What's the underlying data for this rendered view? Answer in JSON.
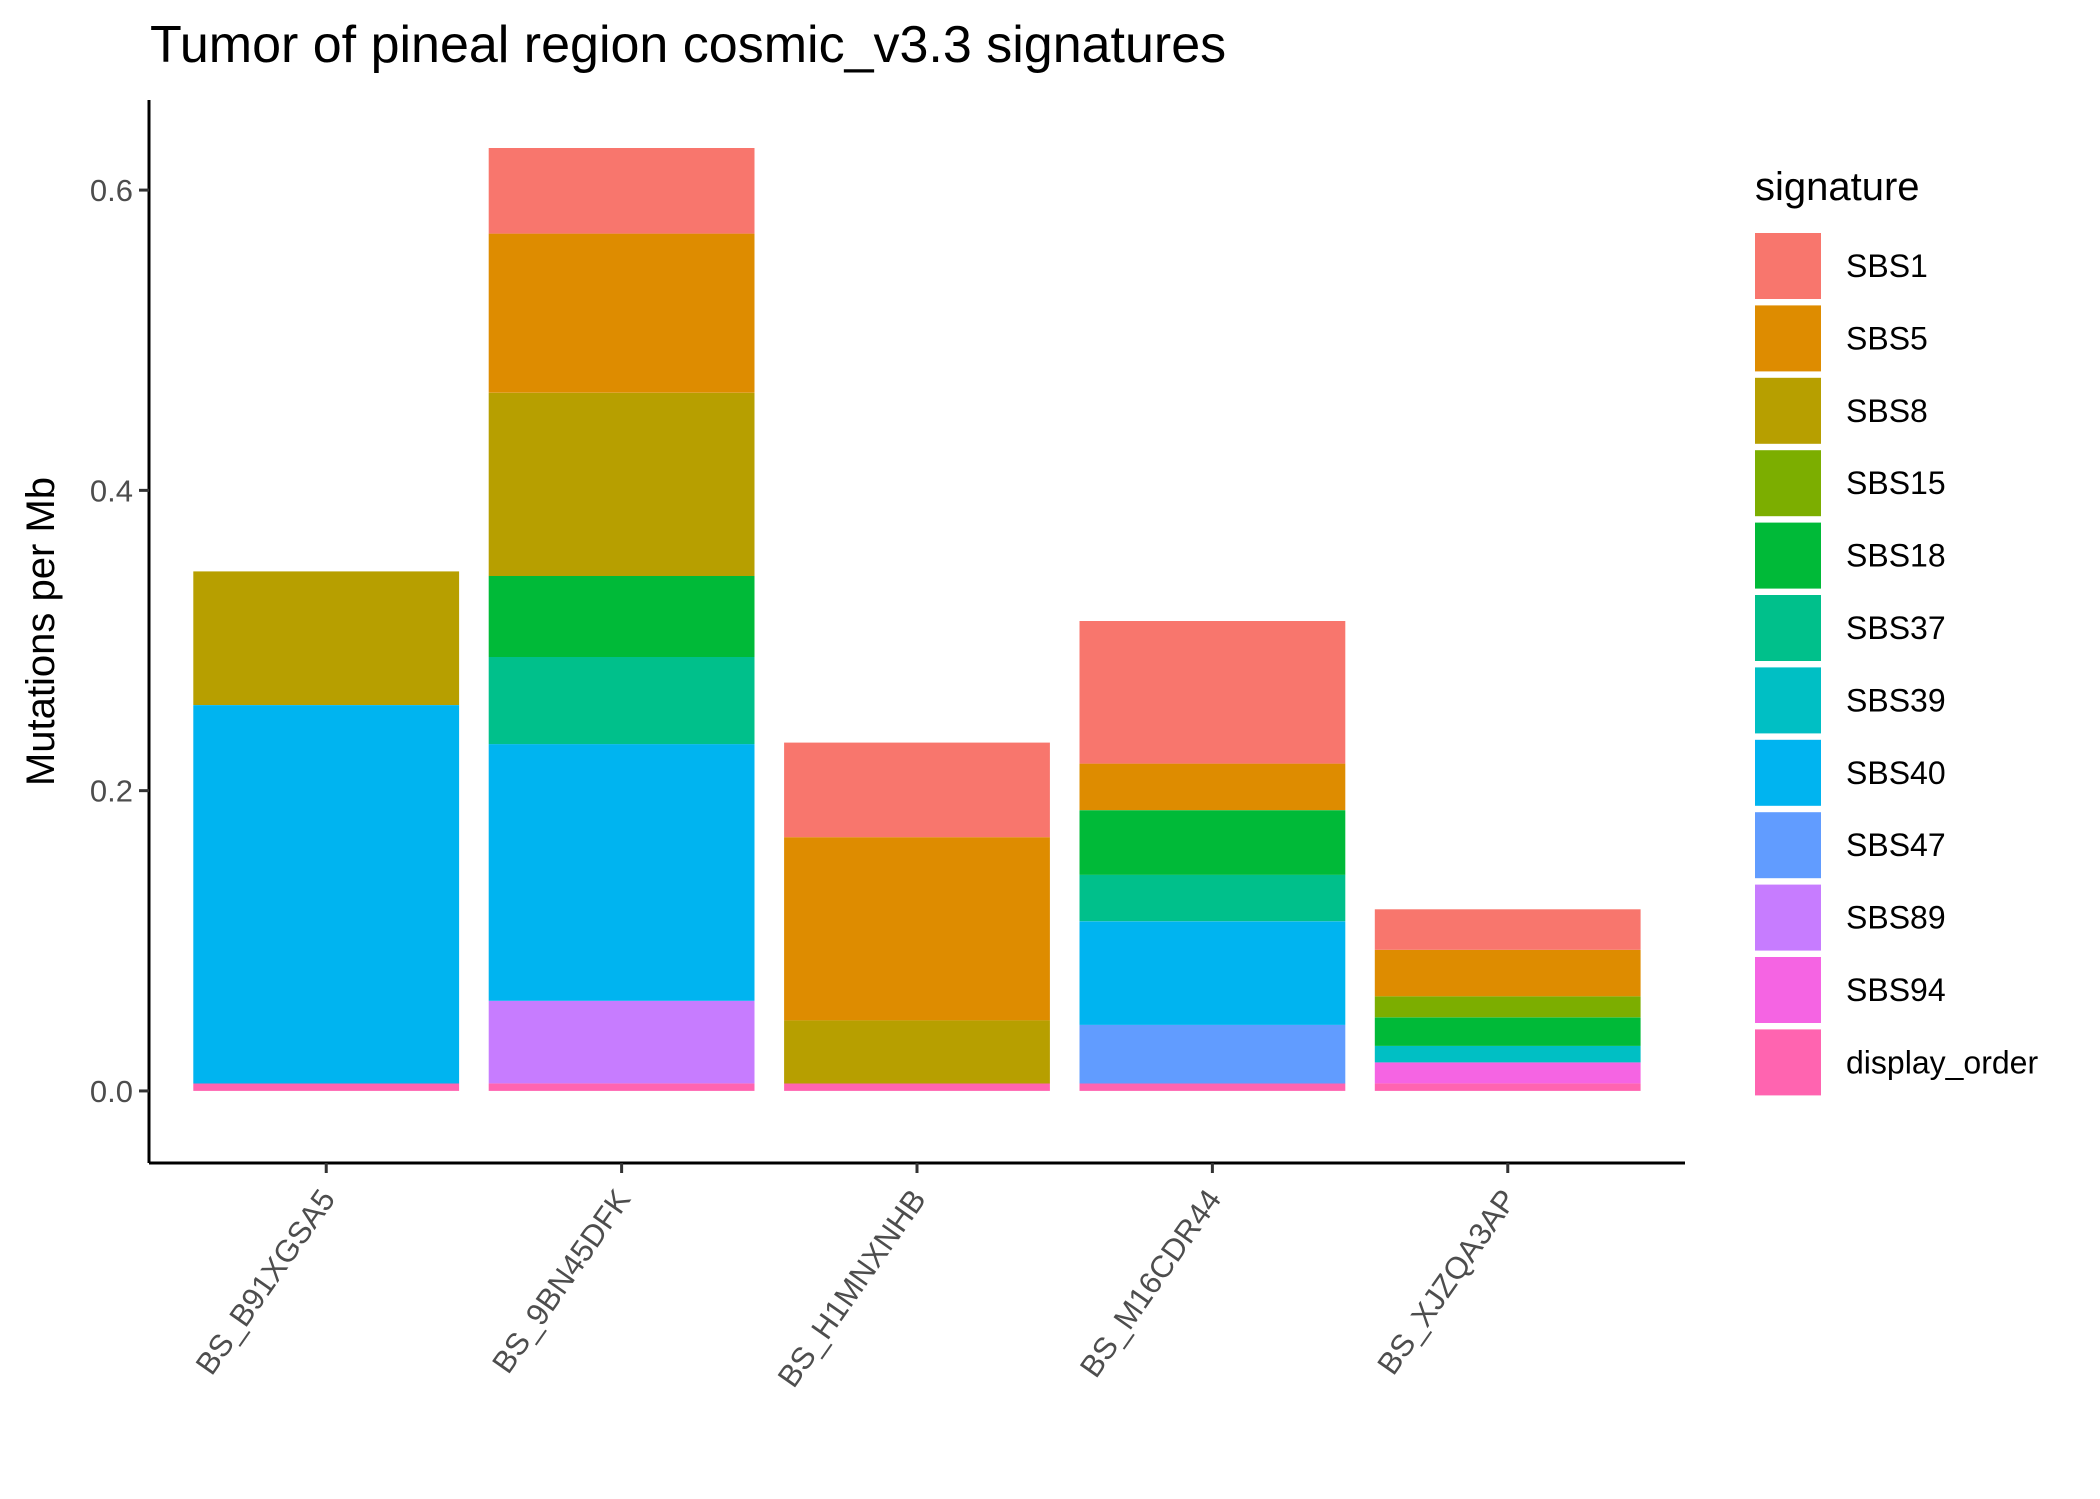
{
  "chart_data": {
    "type": "bar",
    "stacked": true,
    "title": "Tumor of pineal region cosmic_v3.3 signatures",
    "xlabel": "",
    "ylabel": "Mutations per Mb",
    "ylim": [
      -0.048,
      0.66
    ],
    "yticks": [
      0.0,
      0.2,
      0.4,
      0.6
    ],
    "ytick_labels": [
      "0.0",
      "0.2",
      "0.4",
      "0.6"
    ],
    "grid": false,
    "legend": {
      "title": "signature",
      "position": "right"
    },
    "categories": [
      "BS_B91XGSA5",
      "BS_9BN45DFK",
      "BS_H1MNXNHB",
      "BS_M16CDR44",
      "BS_XJZQA3AP"
    ],
    "series": [
      {
        "name": "SBS1",
        "color": "#F8766D",
        "values": [
          0,
          0.057,
          0.063,
          0.095,
          0.027
        ]
      },
      {
        "name": "SBS5",
        "color": "#DE8C00",
        "values": [
          0,
          0.106,
          0.122,
          0.031,
          0.031
        ]
      },
      {
        "name": "SBS8",
        "color": "#B79F00",
        "values": [
          0.089,
          0.122,
          0.042,
          0,
          0
        ]
      },
      {
        "name": "SBS15",
        "color": "#7CAE00",
        "values": [
          0,
          0,
          0,
          0,
          0.014
        ]
      },
      {
        "name": "SBS18",
        "color": "#00BA38",
        "values": [
          0,
          0.054,
          0,
          0.043,
          0.019
        ]
      },
      {
        "name": "SBS37",
        "color": "#00C08B",
        "values": [
          0,
          0.058,
          0,
          0.031,
          0
        ]
      },
      {
        "name": "SBS39",
        "color": "#00BFC4",
        "values": [
          0,
          0,
          0,
          0,
          0.011
        ]
      },
      {
        "name": "SBS40",
        "color": "#00B4F0",
        "values": [
          0.252,
          0.171,
          0,
          0.069,
          0
        ]
      },
      {
        "name": "SBS47",
        "color": "#619CFF",
        "values": [
          0,
          0,
          0,
          0.039,
          0
        ]
      },
      {
        "name": "SBS89",
        "color": "#C77CFF",
        "values": [
          0,
          0.055,
          0,
          0,
          0
        ]
      },
      {
        "name": "SBS94",
        "color": "#F564E3",
        "values": [
          0,
          0,
          0,
          0,
          0.014
        ]
      },
      {
        "name": "display_order",
        "color": "#FF64B0",
        "values": [
          0.005,
          0.005,
          0.005,
          0.005,
          0.005
        ]
      }
    ]
  }
}
